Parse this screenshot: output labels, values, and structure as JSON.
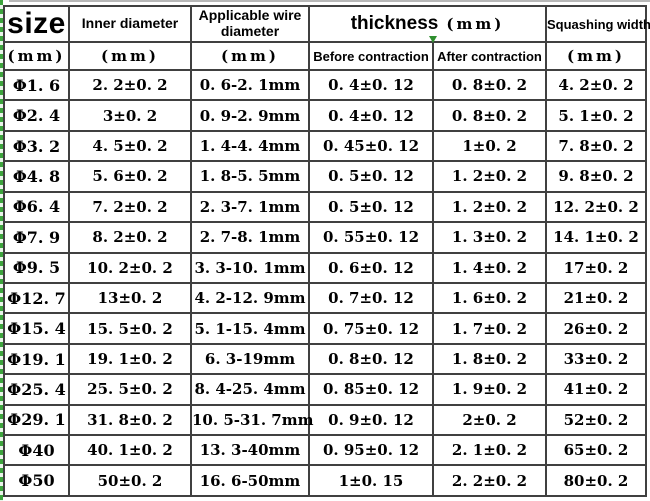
{
  "colors": {
    "background": "#ffffff",
    "table_border": "#404040",
    "marquee_green": "#3da43d",
    "corner_marker_green": "#2f8f2f",
    "top_edge_gray": "#b8b8b8"
  },
  "table": {
    "header": {
      "size": "size",
      "size_unit": "(mm)",
      "inner_diameter": "Inner diameter",
      "inner_unit": "(mm)",
      "wire_diameter": "Applicable wire diameter",
      "wire_unit": "(mm)",
      "thickness": "thickness",
      "thickness_unit": "(mm)",
      "before": "Before contraction",
      "after": "After contraction",
      "squashing_width": "Squashing width",
      "squash_unit": "(mm)"
    },
    "columns": [
      "size (mm)",
      "Inner diameter (mm)",
      "Applicable wire diameter (mm)",
      "thickness Before contraction (mm)",
      "thickness After contraction (mm)",
      "Squashing width (mm)"
    ],
    "rows": [
      [
        "Φ1. 6",
        "2. 2±0. 2",
        "0. 6-2. 1mm",
        "0. 4±0. 12",
        "0. 8±0. 2",
        "4. 2±0. 2"
      ],
      [
        "Φ2. 4",
        "3±0. 2",
        "0. 9-2. 9mm",
        "0. 4±0. 12",
        "0. 8±0. 2",
        "5. 1±0. 2"
      ],
      [
        "Φ3. 2",
        "4. 5±0. 2",
        "1. 4-4. 4mm",
        "0. 45±0. 12",
        "1±0. 2",
        "7. 8±0. 2"
      ],
      [
        "Φ4. 8",
        "5. 6±0. 2",
        "1. 8-5. 5mm",
        "0. 5±0. 12",
        "1. 2±0. 2",
        "9. 8±0. 2"
      ],
      [
        "Φ6. 4",
        "7. 2±0. 2",
        "2. 3-7. 1mm",
        "0. 5±0. 12",
        "1. 2±0. 2",
        "12. 2±0. 2"
      ],
      [
        "Φ7. 9",
        "8. 2±0. 2",
        "2. 7-8. 1mm",
        "0. 55±0. 12",
        "1. 3±0. 2",
        "14. 1±0. 2"
      ],
      [
        "Φ9. 5",
        "10. 2±0. 2",
        "3. 3-10. 1mm",
        "0. 6±0. 12",
        "1. 4±0. 2",
        "17±0. 2"
      ],
      [
        "Φ12. 7",
        "13±0. 2",
        "4. 2-12. 9mm",
        "0. 7±0. 12",
        "1. 6±0. 2",
        "21±0. 2"
      ],
      [
        "Φ15. 4",
        "15. 5±0. 2",
        "5. 1-15. 4mm",
        "0. 75±0. 12",
        "1. 7±0. 2",
        "26±0. 2"
      ],
      [
        "Φ19. 1",
        "19. 1±0. 2",
        "6. 3-19mm",
        "0. 8±0. 12",
        "1. 8±0. 2",
        "33±0. 2"
      ],
      [
        "Φ25. 4",
        "25. 5±0. 2",
        "8. 4-25. 4mm",
        "0. 85±0. 12",
        "1. 9±0. 2",
        "41±0. 2"
      ],
      [
        "Φ29. 1",
        "31. 8±0. 2",
        "10. 5-31. 7mm",
        "0. 9±0. 12",
        "2±0. 2",
        "52±0. 2"
      ],
      [
        "Φ40",
        "40. 1±0. 2",
        "13. 3-40mm",
        "0. 95±0. 12",
        "2. 1±0. 2",
        "65±0. 2"
      ],
      [
        "Φ50",
        "50±0. 2",
        "16. 6-50mm",
        "1±0. 15",
        "2. 2±0. 2",
        "80±0. 2"
      ]
    ]
  }
}
